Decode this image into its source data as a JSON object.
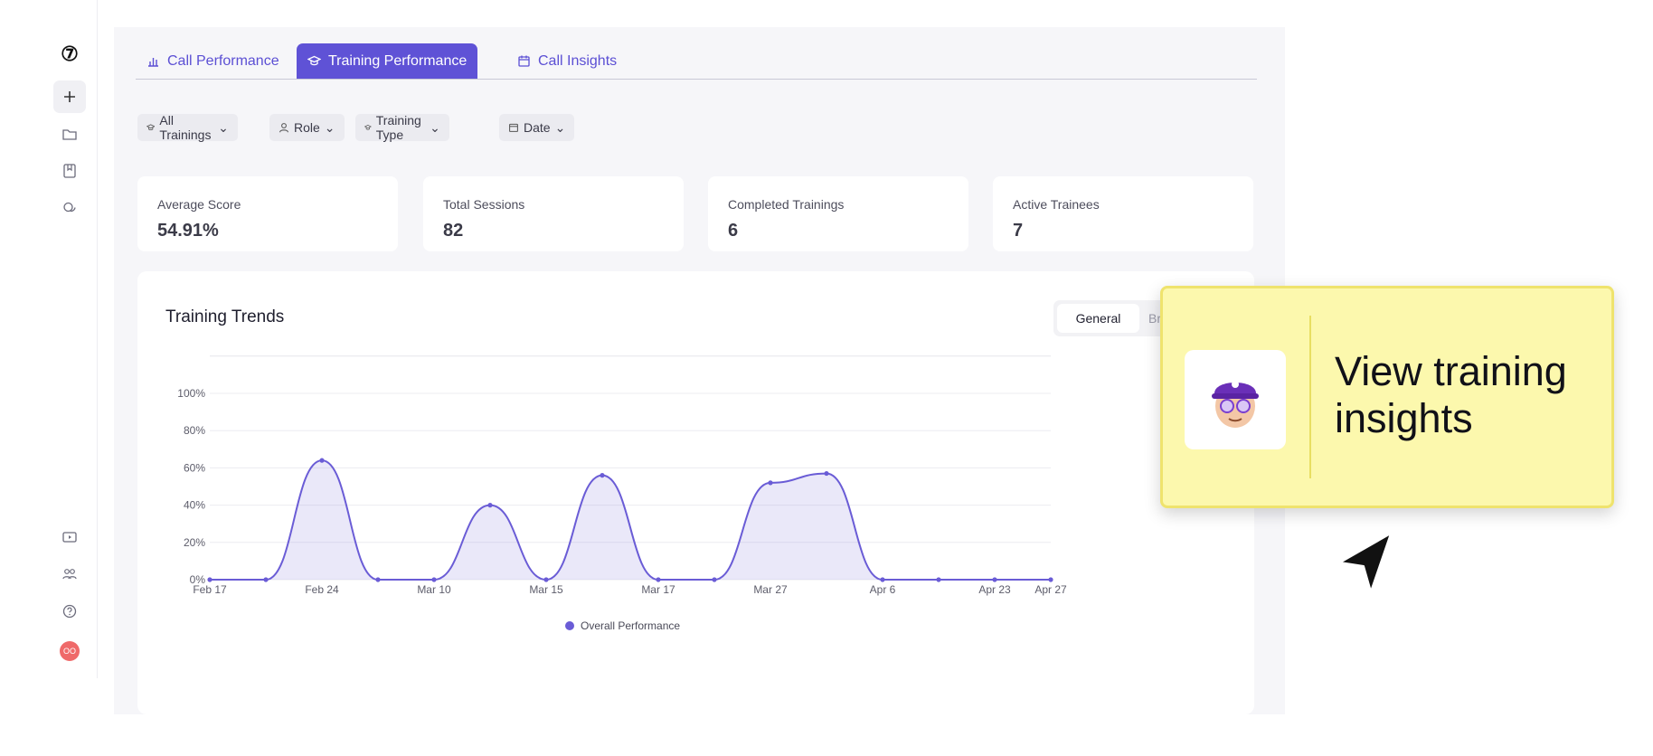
{
  "sidebar": {
    "logo": "⑦",
    "top_icons": [
      "plus-icon",
      "folder-icon",
      "bookmark-icon",
      "chat-icon"
    ],
    "bottom_icons": [
      "video-icon",
      "team-icon",
      "help-icon"
    ],
    "avatar_initials": "OO",
    "avatar_color": "#ef6a6a"
  },
  "tabs": [
    {
      "label": "Call Performance",
      "icon": "bar-chart-icon",
      "active": false
    },
    {
      "label": "Training Performance",
      "icon": "graduation-cap-icon",
      "active": true
    },
    {
      "label": "Call Insights",
      "icon": "calendar-icon",
      "active": false
    }
  ],
  "filters": [
    {
      "label": "All Trainings",
      "icon": "graduation-cap-icon"
    },
    {
      "label": "Role",
      "icon": "user-icon"
    },
    {
      "label": "Training Type",
      "icon": "graduation-cap-icon"
    },
    {
      "label": "Date",
      "icon": "calendar-icon"
    }
  ],
  "stats": [
    {
      "label": "Average Score",
      "value": "54.91%"
    },
    {
      "label": "Total Sessions",
      "value": "82"
    },
    {
      "label": "Completed Trainings",
      "value": "6"
    },
    {
      "label": "Active Trainees",
      "value": "7"
    }
  ],
  "panel": {
    "title": "Training Trends",
    "view_toggle": {
      "general": "General",
      "other": "Bre"
    }
  },
  "chart_data": {
    "type": "area",
    "title": "Training Trends",
    "x_tick_labels": [
      "Feb 17",
      "Feb 24",
      "Mar 10",
      "Mar 15",
      "Mar 17",
      "Mar 27",
      "Apr 6",
      "Apr 23",
      "Apr 27"
    ],
    "y_tick_labels": [
      "0%",
      "20%",
      "40%",
      "60%",
      "80%",
      "100%"
    ],
    "ylim": [
      0,
      100
    ],
    "grid": true,
    "legend_position": "bottom",
    "series": [
      {
        "name": "Overall Performance",
        "color": "#6a5cd6",
        "points": [
          [
            0,
            0
          ],
          [
            1,
            0
          ],
          [
            2,
            64
          ],
          [
            3,
            0
          ],
          [
            4,
            0
          ],
          [
            5,
            40
          ],
          [
            6,
            0
          ],
          [
            7,
            56
          ],
          [
            8,
            0
          ],
          [
            9,
            0
          ],
          [
            10,
            52
          ],
          [
            11,
            57
          ],
          [
            12,
            0
          ],
          [
            13,
            0
          ],
          [
            14,
            0
          ],
          [
            15,
            0
          ]
        ]
      }
    ],
    "tick_positions": [
      0,
      2,
      4,
      6,
      8,
      10,
      12,
      14,
      15
    ]
  },
  "callout": {
    "text": "View training insights",
    "background": "#fcf8ad"
  }
}
